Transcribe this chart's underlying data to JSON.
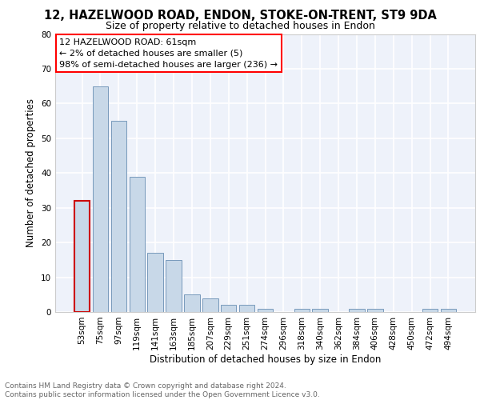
{
  "title1": "12, HAZELWOOD ROAD, ENDON, STOKE-ON-TRENT, ST9 9DA",
  "title2": "Size of property relative to detached houses in Endon",
  "xlabel": "Distribution of detached houses by size in Endon",
  "ylabel": "Number of detached properties",
  "categories": [
    "53sqm",
    "75sqm",
    "97sqm",
    "119sqm",
    "141sqm",
    "163sqm",
    "185sqm",
    "207sqm",
    "229sqm",
    "251sqm",
    "274sqm",
    "296sqm",
    "318sqm",
    "340sqm",
    "362sqm",
    "384sqm",
    "406sqm",
    "428sqm",
    "450sqm",
    "472sqm",
    "494sqm"
  ],
  "values": [
    32,
    65,
    55,
    39,
    17,
    15,
    5,
    4,
    2,
    2,
    1,
    0,
    1,
    1,
    0,
    1,
    1,
    0,
    0,
    1,
    1
  ],
  "bar_color": "#c8d8e8",
  "bar_edge_color": "#7799bb",
  "highlight_bar_index": 0,
  "highlight_bar_edge_color": "#cc0000",
  "ylim": [
    0,
    80
  ],
  "yticks": [
    0,
    10,
    20,
    30,
    40,
    50,
    60,
    70,
    80
  ],
  "annotation_box_text": "12 HAZELWOOD ROAD: 61sqm\n← 2% of detached houses are smaller (5)\n98% of semi-detached houses are larger (236) →",
  "footer_text": "Contains HM Land Registry data © Crown copyright and database right 2024.\nContains public sector information licensed under the Open Government Licence v3.0.",
  "bg_color": "#eef2fa",
  "grid_color": "#ffffff",
  "title1_fontsize": 10.5,
  "title2_fontsize": 9,
  "annotation_fontsize": 8,
  "tick_fontsize": 7.5,
  "ylabel_fontsize": 8.5,
  "xlabel_fontsize": 8.5,
  "footer_fontsize": 6.5
}
